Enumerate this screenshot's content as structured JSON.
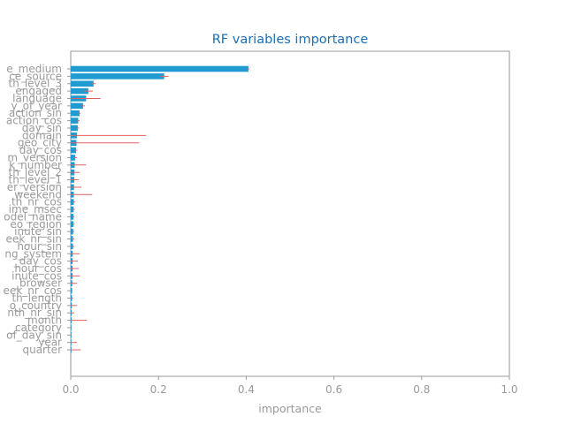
{
  "chart_data": {
    "type": "bar",
    "orientation": "horizontal",
    "title": "RF variables importance",
    "xlabel": "importance",
    "ylabel": "",
    "xlim": [
      0,
      1.0
    ],
    "xticks": [
      "0.0",
      "0.2",
      "0.4",
      "0.6",
      "0.8",
      "1.0"
    ],
    "grid": false,
    "bar_color": "#1f9bd1",
    "error_color": "#e06060",
    "categories": [
      "e_medium",
      "ce_source",
      "th_level_3",
      "engaged",
      "language",
      "y_of_year",
      "action_sin",
      "action_cos",
      "day_sin",
      "domain",
      "geo_city",
      "day_cos",
      "m_version",
      "k_number",
      "th_level_2",
      "th_level_1",
      "er_version",
      "weekend",
      "th_nr_cos",
      "ime_msec",
      "odel_name",
      "eo_region",
      "inute_sin",
      "eek_nr_sin",
      "hour_sin",
      "ng_system",
      "_day_cos",
      "hour_cos",
      "inute_cos",
      "_browser",
      "eek_nr_cos",
      "th_length",
      "o_country",
      "nth_nr_sin",
      "month",
      "_category",
      "of_day_sin",
      "year",
      "quarter"
    ],
    "values": [
      0.405,
      0.213,
      0.052,
      0.04,
      0.035,
      0.028,
      0.02,
      0.017,
      0.016,
      0.014,
      0.013,
      0.012,
      0.01,
      0.009,
      0.0085,
      0.008,
      0.0075,
      0.007,
      0.007,
      0.0065,
      0.006,
      0.006,
      0.0055,
      0.005,
      0.005,
      0.0045,
      0.004,
      0.004,
      0.004,
      0.0035,
      0.003,
      0.003,
      0.0025,
      0.002,
      0.002,
      0.0015,
      0.001,
      0.001,
      0.001
    ],
    "errors": [
      0.002,
      0.01,
      0.005,
      0.01,
      0.033,
      0.004,
      0.002,
      0.003,
      0.003,
      0.158,
      0.143,
      0.003,
      0.004,
      0.026,
      0.012,
      0.01,
      0.017,
      0.042,
      0.003,
      0.003,
      0.002,
      0.003,
      0.002,
      0.003,
      0.003,
      0.016,
      0.012,
      0.014,
      0.017,
      0.011,
      0.001,
      0.002,
      0.012,
      0.006,
      0.035,
      0.001,
      0.001,
      0.013,
      0.022
    ]
  }
}
